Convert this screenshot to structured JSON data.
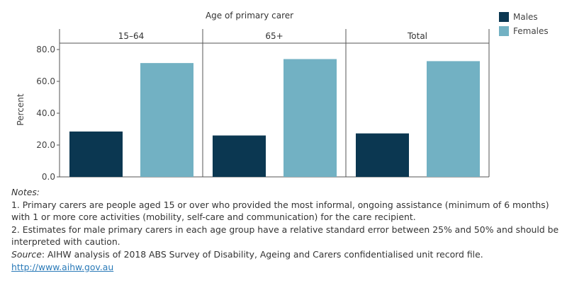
{
  "chart_data": {
    "type": "bar",
    "facet_title": "Age of primary carer",
    "facets": [
      "15–64",
      "65+",
      "Total"
    ],
    "series": [
      {
        "name": "Males",
        "color": "#0b3751",
        "values": [
          28.5,
          26.0,
          27.3
        ]
      },
      {
        "name": "Females",
        "color": "#72b1c3",
        "values": [
          71.5,
          74.0,
          72.7
        ]
      }
    ],
    "ylabel": "Percent",
    "yticks": [
      "0.0",
      "20.0",
      "40.0",
      "60.0",
      "80.0"
    ],
    "ylim": [
      0,
      84
    ],
    "legend_position": "top-right"
  },
  "notes": {
    "heading": "Notes:",
    "items": [
      "1. Primary carers are people aged 15 or over who provided the most informal, ongoing assistance (minimum of 6 months) with 1 or more core activities (mobility, self-care and communication) for the care recipient.",
      "2. Estimates for male primary carers in each age group have a relative standard error between 25% and 50% and should be interpreted with caution."
    ],
    "source_label": "Source",
    "source_text": ": AIHW analysis of 2018 ABS Survey of Disability, Ageing and Carers confidentialised unit record file.",
    "link": "http://www.aihw.gov.au"
  }
}
